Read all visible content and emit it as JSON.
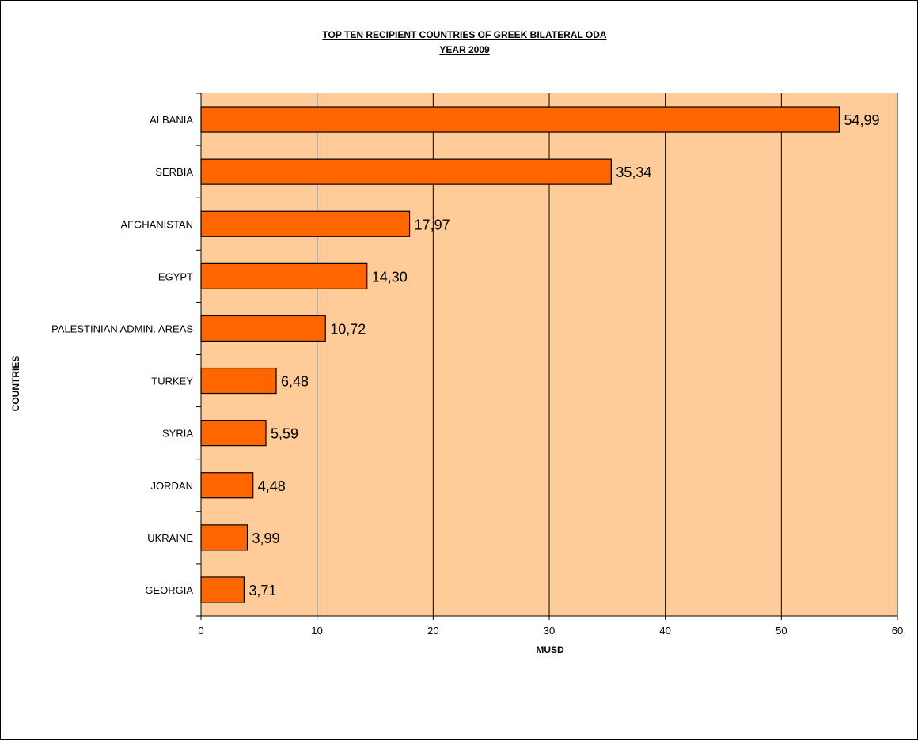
{
  "chart_data": {
    "type": "bar",
    "orientation": "horizontal",
    "title": "TOP TEN RECIPIENT COUNTRIES OF GREEK BILATERAL ODA",
    "subtitle": "YEAR  2009",
    "xlabel": "MUSD",
    "ylabel": "COUNTRIES",
    "categories": [
      "ALBANIA",
      "SERBIA",
      "AFGHANISTAN",
      "EGYPT",
      "PALESTINIAN ADMIN. AREAS",
      "TURKEY",
      "SYRIA",
      "JORDAN",
      "UKRAINE",
      "GEORGIA"
    ],
    "values": [
      54.99,
      35.34,
      17.97,
      14.3,
      10.72,
      6.48,
      5.59,
      4.48,
      3.99,
      3.71
    ],
    "data_labels": [
      "54,99",
      "35,34",
      "17,97",
      "14,30",
      "10,72",
      "6,48",
      "5,59",
      "4,48",
      "3,99",
      "3,71"
    ],
    "xlim": [
      0,
      60
    ],
    "xticks": [
      0,
      10,
      20,
      30,
      40,
      50,
      60
    ],
    "grid": true,
    "legend": "none",
    "colors": {
      "bar_fill": "#ff6600",
      "bar_stroke": "#000000",
      "plot_background": "#ffcc99",
      "gridline": "#000000",
      "text": "#000000"
    }
  }
}
